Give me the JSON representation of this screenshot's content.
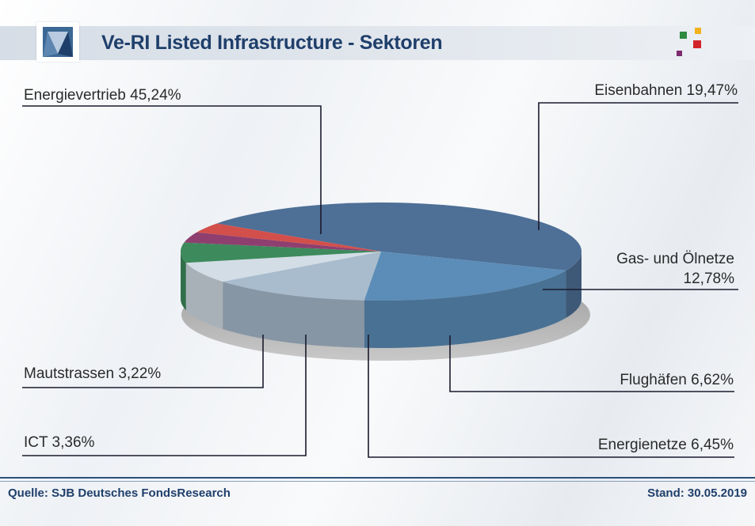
{
  "header": {
    "title": "Ve-RI Listed Infrastructure - Sektoren",
    "logo_icon": "diamond-logo-icon",
    "brand_squares_icon": "colored-squares-icon"
  },
  "footer": {
    "source": "Quelle: SJB Deutsches FondsResearch",
    "stand": "Stand: 30.05.2019"
  },
  "chart_data": {
    "type": "pie",
    "style": "3d",
    "title": "Ve-RI Listed Infrastructure - Sektoren",
    "unit": "%",
    "legend": "none",
    "slices": [
      {
        "name": "Energievertrieb",
        "value": 45.24,
        "label_line1": "Energievertrieb 45,24%",
        "label_line2": "",
        "color": "#4e6f96"
      },
      {
        "name": "Eisenbahnen",
        "value": 19.47,
        "label_line1": "Eisenbahnen 19,47%",
        "label_line2": "",
        "color": "#5b8db8"
      },
      {
        "name": "Gas- und Ölnetze",
        "value": 12.78,
        "label_line1": "Gas- und Ölnetze",
        "label_line2": "12,78%",
        "color": "#a9bccd"
      },
      {
        "name": "Flughäfen",
        "value": 6.62,
        "label_line1": "Flughäfen 6,62%",
        "label_line2": "",
        "color": "#d3dde6"
      },
      {
        "name": "Energienetze",
        "value": 6.45,
        "label_line1": "Energienetze 6,45%",
        "label_line2": "",
        "color": "#3d8a5c"
      },
      {
        "name": "ICT",
        "value": 3.36,
        "label_line1": "ICT 3,36%",
        "label_line2": "",
        "color": "#8e3f6f"
      },
      {
        "name": "Mautstrassen",
        "value": 3.22,
        "label_line1": "Mautstrassen 3,22%",
        "label_line2": "",
        "color": "#d24f4b"
      }
    ]
  }
}
